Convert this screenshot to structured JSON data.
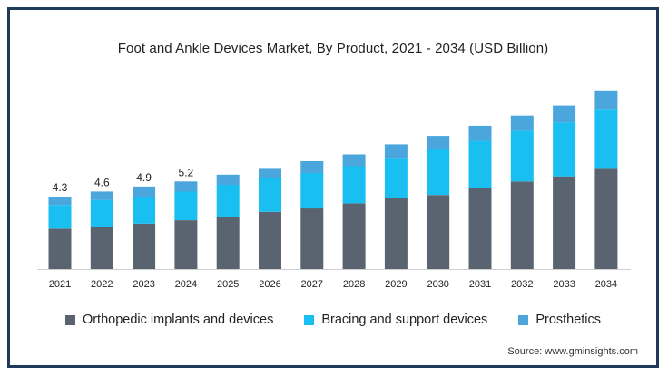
{
  "chart_data": {
    "type": "bar",
    "stacked": true,
    "title": "Foot and Ankle Devices Market, By Product, 2021 - 2034 (USD Billion)",
    "xlabel": "",
    "ylabel": "",
    "categories": [
      "2021",
      "2022",
      "2023",
      "2024",
      "2025",
      "2026",
      "2027",
      "2028",
      "2029",
      "2030",
      "2031",
      "2032",
      "2033",
      "2034"
    ],
    "series": [
      {
        "name": "Orthopedic implants and devices",
        "color": "#5a6470",
        "values": [
          2.4,
          2.5,
          2.7,
          2.9,
          3.1,
          3.4,
          3.6,
          3.9,
          4.2,
          4.4,
          4.8,
          5.2,
          5.5,
          6.0
        ]
      },
      {
        "name": "Bracing and support devices",
        "color": "#19bff0",
        "values": [
          1.4,
          1.6,
          1.6,
          1.7,
          1.9,
          2.0,
          2.1,
          2.2,
          2.4,
          2.7,
          2.8,
          3.0,
          3.2,
          3.5
        ]
      },
      {
        "name": "Prosthetics",
        "color": "#4aa6dd",
        "values": [
          0.5,
          0.5,
          0.6,
          0.6,
          0.6,
          0.6,
          0.7,
          0.7,
          0.8,
          0.8,
          0.9,
          0.9,
          1.0,
          1.1
        ]
      }
    ],
    "data_labels": [
      "4.3",
      "4.6",
      "4.9",
      "5.2"
    ],
    "ylim": [
      0,
      11
    ],
    "grid": false,
    "legend": "bottom"
  },
  "source": "Source: www.gminsights.com"
}
